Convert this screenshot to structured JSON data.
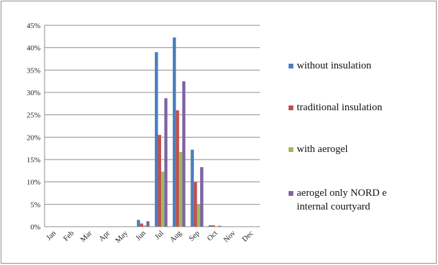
{
  "chart_data": {
    "type": "bar",
    "title": "",
    "xlabel": "",
    "ylabel": "",
    "categories": [
      "Jan",
      "Feb",
      "Mar",
      "Apr",
      "May",
      "Jun",
      "Jul",
      "Aug",
      "Sep",
      "Oct",
      "Nov",
      "Dec"
    ],
    "ylim": [
      0,
      45
    ],
    "yticks": [
      "0%",
      "5%",
      "10%",
      "15%",
      "20%",
      "25%",
      "30%",
      "35%",
      "40%",
      "45%"
    ],
    "grid": true,
    "legend_position": "right",
    "series": [
      {
        "name": "without insulation",
        "color": "#4a7ebf",
        "values": [
          0,
          0,
          0,
          0,
          0,
          1.5,
          39,
          42.3,
          17.2,
          0.3,
          0,
          0
        ]
      },
      {
        "name": "traditional insulation",
        "color": "#c0504d",
        "values": [
          0,
          0,
          0,
          0,
          0,
          0.7,
          20.5,
          26,
          10,
          0.3,
          0,
          0
        ]
      },
      {
        "name": "with aerogel",
        "color": "#9bbb59",
        "values": [
          0,
          0,
          0,
          0,
          0,
          0.3,
          12.3,
          16.7,
          4.9,
          0.1,
          0,
          0
        ]
      },
      {
        "name": "aerogel only NORD e internal courtyard",
        "legend_lines": [
          "aerogel only NORD e",
          "internal courtyard"
        ],
        "color": "#8064a2",
        "values": [
          0,
          0,
          0,
          0,
          0,
          1.2,
          28.7,
          32.5,
          13.3,
          0.2,
          0,
          0
        ]
      }
    ]
  }
}
